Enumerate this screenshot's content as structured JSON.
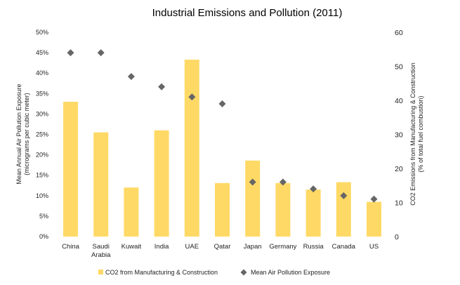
{
  "chart_data": {
    "type": "bar",
    "title": "Industrial Emissions and Pollution (2011)",
    "categories": [
      "China",
      "Saudi Arabia",
      "Kuwait",
      "India",
      "UAE",
      "Qatar",
      "Japan",
      "Germany",
      "Russia",
      "Canada",
      "US"
    ],
    "left_axis": {
      "label_line1": "Mean Annual Air Pollution Exposure",
      "label_line2": "(micrograms per cubic meter)",
      "ticks": [
        "0%",
        "5%",
        "10%",
        "15%",
        "20%",
        "25%",
        "30%",
        "35%",
        "40%",
        "45%",
        "50%"
      ],
      "range": [
        0,
        0.5
      ]
    },
    "right_axis": {
      "label_line1": "CO2 Emissions from Manufacturing & Construction",
      "label_line2": "(% of total fuel combustion)",
      "ticks": [
        "0",
        "10",
        "20",
        "30",
        "40",
        "50",
        "60"
      ],
      "range": [
        0,
        60
      ]
    },
    "series": [
      {
        "name": "CO2 from Manufacturing & Construction",
        "type": "bar",
        "axis": "left",
        "color": "#FFD966",
        "values": [
          0.33,
          0.255,
          0.12,
          0.26,
          0.433,
          0.131,
          0.186,
          0.131,
          0.115,
          0.133,
          0.085
        ]
      },
      {
        "name": "Mean Air Pollution Exposure",
        "type": "scatter",
        "marker": "diamond",
        "axis": "right",
        "color": "#666666",
        "values": [
          54,
          54,
          47,
          44,
          41,
          39,
          16,
          16,
          14,
          12,
          11
        ]
      }
    ],
    "grid": false,
    "legend_position": "bottom"
  }
}
